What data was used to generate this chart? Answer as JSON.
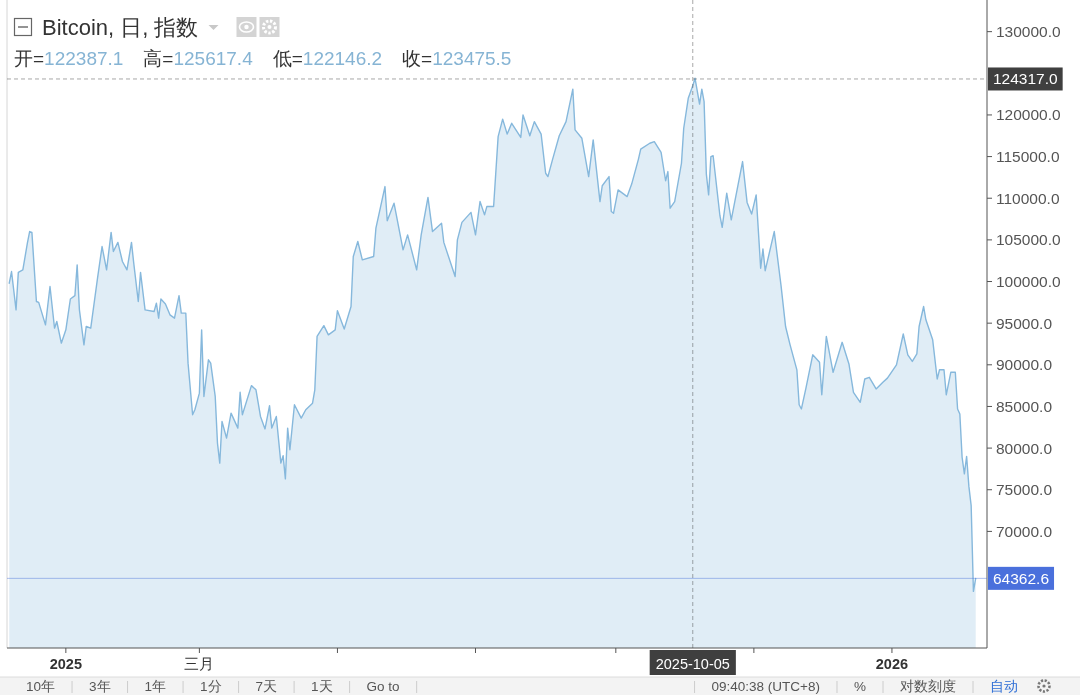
{
  "chart_data": {
    "type": "area",
    "title": "Bitcoin, 日, 指数",
    "subtitle": "开=122387.1 高=125617.4 低=122146.2 收=123475.5",
    "color": "#86b8dc",
    "x": [
      "2024-12-07",
      "2024-12-08",
      "2024-12-10",
      "2024-12-11",
      "2024-12-13",
      "2024-12-15",
      "2024-12-16",
      "2024-12-17",
      "2024-12-19",
      "2024-12-20",
      "2024-12-23",
      "2024-12-25",
      "2024-12-27",
      "2024-12-28",
      "2024-12-30",
      "2025-01-01",
      "2025-01-03",
      "2025-01-05",
      "2025-01-06",
      "2025-01-07",
      "2025-01-09",
      "2025-01-10",
      "2025-01-12",
      "2025-01-15",
      "2025-01-17",
      "2025-01-19",
      "2025-01-21",
      "2025-01-22",
      "2025-01-24",
      "2025-01-26",
      "2025-01-28",
      "2025-01-30",
      "2025-01-31",
      "2025-02-02",
      "2025-02-03",
      "2025-02-05",
      "2025-02-09",
      "2025-02-10",
      "2025-02-11",
      "2025-02-12",
      "2025-02-14",
      "2025-02-16",
      "2025-02-18",
      "2025-02-20",
      "2025-02-21",
      "2025-02-23",
      "2025-02-24",
      "2025-02-26",
      "2025-02-27",
      "2025-03-01",
      "2025-03-02",
      "2025-03-03",
      "2025-03-05",
      "2025-03-06",
      "2025-03-08",
      "2025-03-09",
      "2025-03-10",
      "2025-03-11",
      "2025-03-13",
      "2025-03-15",
      "2025-03-18",
      "2025-03-19",
      "2025-03-20",
      "2025-03-24",
      "2025-03-26",
      "2025-03-28",
      "2025-03-30",
      "2025-04-01",
      "2025-04-02",
      "2025-04-04",
      "2025-04-06",
      "2025-04-07",
      "2025-04-08",
      "2025-04-09",
      "2025-04-10",
      "2025-04-12",
      "2025-04-15",
      "2025-04-17",
      "2025-04-20",
      "2025-04-21",
      "2025-04-22",
      "2025-04-25",
      "2025-04-27",
      "2025-04-30",
      "2025-05-01",
      "2025-05-04",
      "2025-05-07",
      "2025-05-08",
      "2025-05-10",
      "2025-05-12",
      "2025-05-17",
      "2025-05-18",
      "2025-05-22",
      "2025-05-23",
      "2025-05-26",
      "2025-05-30",
      "2025-06-01",
      "2025-06-05",
      "2025-06-07",
      "2025-06-10",
      "2025-06-12",
      "2025-06-16",
      "2025-06-17",
      "2025-06-22",
      "2025-06-23",
      "2025-06-25",
      "2025-06-29",
      "2025-07-01",
      "2025-07-03",
      "2025-07-05",
      "2025-07-06",
      "2025-07-09",
      "2025-07-11",
      "2025-07-13",
      "2025-07-15",
      "2025-07-17",
      "2025-07-21",
      "2025-07-22",
      "2025-07-25",
      "2025-07-27",
      "2025-07-30",
      "2025-08-01",
      "2025-08-02",
      "2025-08-04",
      "2025-08-07",
      "2025-08-10",
      "2025-08-13",
      "2025-08-14",
      "2025-08-17",
      "2025-08-20",
      "2025-08-22",
      "2025-08-25",
      "2025-08-26",
      "2025-08-29",
      "2025-08-30",
      "2025-08-31",
      "2025-09-02",
      "2025-09-06",
      "2025-09-08",
      "2025-09-11",
      "2025-09-12",
      "2025-09-16",
      "2025-09-18",
      "2025-09-21",
      "2025-09-23",
      "2025-09-24",
      "2025-09-25",
      "2025-09-27",
      "2025-09-30",
      "2025-10-01",
      "2025-10-03",
      "2025-10-05",
      "2025-10-06",
      "2025-10-08",
      "2025-10-09",
      "2025-10-10",
      "2025-10-11",
      "2025-10-12",
      "2025-10-13",
      "2025-10-14",
      "2025-10-17",
      "2025-10-18",
      "2025-10-20",
      "2025-10-22",
      "2025-10-25",
      "2025-10-27",
      "2025-10-29",
      "2025-10-31",
      "2025-11-02",
      "2025-11-04",
      "2025-11-05",
      "2025-11-06",
      "2025-11-10",
      "2025-11-13",
      "2025-11-15",
      "2025-11-17",
      "2025-11-20",
      "2025-11-21",
      "2025-11-22",
      "2025-11-24",
      "2025-11-27",
      "2025-11-30",
      "2025-12-01",
      "2025-12-03",
      "2025-12-06",
      "2025-12-10",
      "2025-12-13",
      "2025-12-15",
      "2025-12-18",
      "2025-12-20",
      "2025-12-22",
      "2025-12-25",
      "2025-12-28",
      "2025-12-30",
      "2026-01-03",
      "2026-01-06",
      "2026-01-08",
      "2026-01-10",
      "2026-01-12",
      "2026-01-13",
      "2026-01-15",
      "2026-01-16",
      "2026-01-19",
      "2026-01-21",
      "2026-01-22",
      "2026-01-24",
      "2026-01-25",
      "2026-01-27",
      "2026-01-29",
      "2026-01-30",
      "2026-01-31",
      "2026-02-01",
      "2026-02-02",
      "2026-02-03",
      "2026-02-04",
      "2026-02-05",
      "2026-02-06",
      "2026-02-07"
    ],
    "values": [
      99800,
      101200,
      96600,
      101100,
      101400,
      104600,
      106000,
      105900,
      97600,
      97500,
      94800,
      99400,
      94400,
      95200,
      92600,
      94200,
      97900,
      98300,
      102000,
      96600,
      92400,
      94600,
      94400,
      100400,
      104200,
      101400,
      105900,
      103600,
      104700,
      102400,
      101400,
      104700,
      102200,
      97600,
      101100,
      96600,
      96400,
      97400,
      95600,
      97900,
      97300,
      96000,
      95600,
      98300,
      96200,
      96200,
      90200,
      84000,
      84600,
      86600,
      94200,
      86200,
      90600,
      90200,
      86200,
      80600,
      78200,
      83200,
      81200,
      84200,
      82400,
      86700,
      84000,
      87500,
      87000,
      83800,
      82300,
      85100,
      82400,
      83800,
      78200,
      79100,
      76300,
      82400,
      79800,
      85200,
      83600,
      84600,
      85400,
      87000,
      93400,
      94700,
      93600,
      94200,
      96500,
      94300,
      97000,
      103000,
      104800,
      102600,
      103000,
      106400,
      111400,
      107300,
      109400,
      103800,
      105600,
      101400,
      105600,
      110100,
      106000,
      107000,
      104700,
      100600,
      105000,
      107100,
      108300,
      105600,
      109600,
      108000,
      109000,
      109000,
      117400,
      119500,
      117700,
      119000,
      117300,
      120000,
      117500,
      119200,
      117700,
      113000,
      112600,
      114600,
      117500,
      119200,
      123100,
      118200,
      117200,
      112600,
      117000,
      109600,
      111500,
      112600,
      108400,
      108200,
      111000,
      110200,
      111700,
      114700,
      115900,
      116600,
      116800,
      115500,
      112100,
      113200,
      108800,
      109600,
      114200,
      118400,
      122000,
      123500,
      124400,
      121300,
      123100,
      121600,
      112900,
      110400,
      115000,
      115100,
      107900,
      106500,
      110600,
      107400,
      111600,
      114400,
      109500,
      108100,
      110400,
      101600,
      103900,
      101300,
      106000,
      99500,
      94600,
      92400,
      89400,
      85200,
      84700,
      87200,
      91200,
      90300,
      86400,
      93400,
      89100,
      92700,
      90100,
      86700,
      85500,
      88300,
      88500,
      87100,
      87900,
      88400,
      90000,
      93700,
      91200,
      90400,
      91300,
      94600,
      97000,
      95400,
      93000,
      88300,
      89400,
      89400,
      86400,
      89100,
      89100,
      84700,
      84100,
      78900,
      76900,
      79000,
      75400,
      73100,
      62800,
      64362.6
    ],
    "xlim": [
      "2024-12-06",
      "2026-02-12"
    ],
    "ylim": [
      56000,
      133800
    ],
    "xticks": [
      {
        "value": "2025-01-01",
        "label": "2025"
      },
      {
        "value": "2025-03-01",
        "label": "三月"
      },
      {
        "value": "2025-05-01",
        "label": null
      },
      {
        "value": "2025-07-01",
        "label": null
      },
      {
        "value": "2025-09-01",
        "label": null
      },
      {
        "value": "2025-11-01",
        "label": null
      },
      {
        "value": "2026-01-01",
        "label": "2026"
      }
    ],
    "yticks": [
      {
        "value": 70000,
        "label": "70000.0"
      },
      {
        "value": 75000,
        "label": "75000.0"
      },
      {
        "value": 80000,
        "label": "80000.0"
      },
      {
        "value": 85000,
        "label": "85000.0"
      },
      {
        "value": 90000,
        "label": "90000.0"
      },
      {
        "value": 95000,
        "label": "95000.0"
      },
      {
        "value": 100000,
        "label": "100000.0"
      },
      {
        "value": 105000,
        "label": "105000.0"
      },
      {
        "value": 110000,
        "label": "110000.0"
      },
      {
        "value": 115000,
        "label": "115000.0"
      },
      {
        "value": 120000,
        "label": "120000.0"
      },
      {
        "value": 130000,
        "label": "130000.0"
      }
    ],
    "ref_lines": [
      {
        "axis": "x",
        "value": "2025-10-05",
        "label": "2025-10-05",
        "color": "#3f3f3f",
        "line_style": "dashed"
      },
      {
        "axis": "y",
        "value": 124317,
        "label": "124317.0",
        "color": "#3f3f3f",
        "line_style": "dashed"
      },
      {
        "axis": "y",
        "value": 64362.6,
        "label": "64362.6",
        "color": "#4a70dc",
        "line_style": "solid"
      }
    ],
    "annotations": [
      "10年",
      "3年",
      "1年",
      "1分",
      "7天",
      "1天",
      "Go to",
      "09:40:38 (UTC+8)",
      "%",
      "对数刻度",
      "自动"
    ]
  }
}
